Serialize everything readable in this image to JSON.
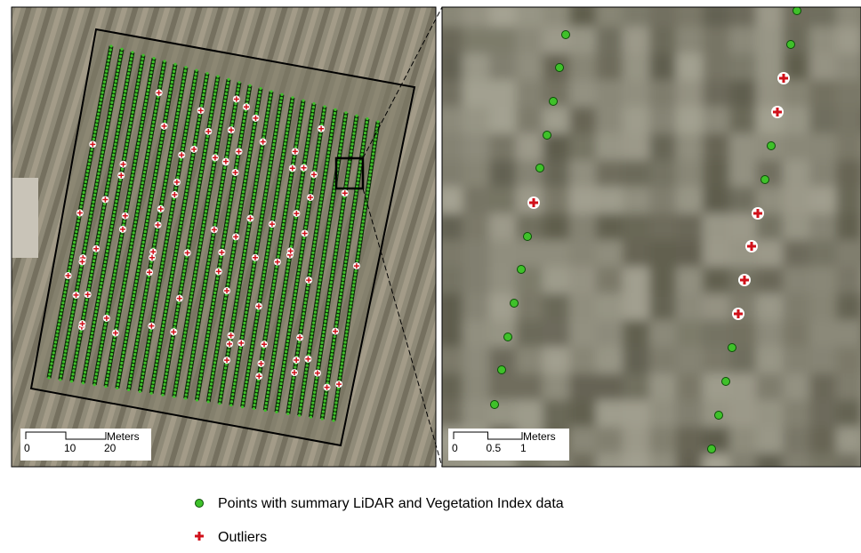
{
  "overview_map": {
    "scale_bar": {
      "unit": "Meters",
      "ticks": [
        0,
        10,
        20
      ]
    }
  },
  "detail_map": {
    "scale_bar": {
      "unit": "Meters",
      "ticks": [
        0,
        0.5,
        1
      ]
    }
  },
  "legend": {
    "items": [
      {
        "label": "Points with summary LiDAR and Vegetation Index data"
      },
      {
        "label": "Outliers"
      }
    ]
  }
}
